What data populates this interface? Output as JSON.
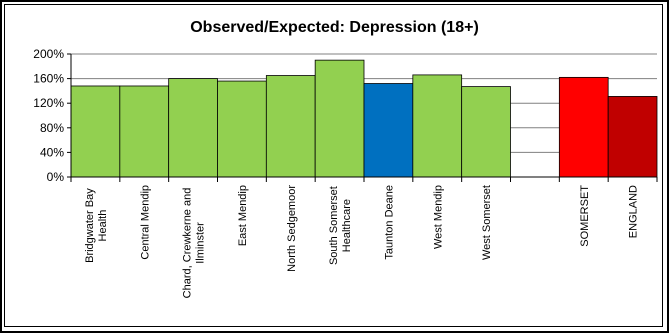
{
  "chart_data": {
    "type": "bar",
    "title": "Observed/Expected: Depression (18+)",
    "xlabel": "",
    "ylabel": "",
    "ylim": [
      0,
      200
    ],
    "yticks": [
      0,
      40,
      80,
      120,
      160,
      200
    ],
    "ytick_labels": [
      "0%",
      "40%",
      "80%",
      "120%",
      "160%",
      "200%"
    ],
    "grid": true,
    "legend": "none",
    "categories": [
      "Bridgwater Bay Health",
      "Central Mendip",
      "Chard, Crewkerne and Ilminster",
      "East Mendip",
      "North Sedgemoor",
      "South Somerset Healthcare",
      "Taunton Deane",
      "West Mendip",
      "West Somerset",
      "",
      "SOMERSET",
      "ENGLAND"
    ],
    "category_label_lines": [
      [
        "Bridgwater Bay",
        "Health"
      ],
      [
        "Central Mendip"
      ],
      [
        "Chard, Crewkerne and",
        "Ilminster"
      ],
      [
        "East Mendip"
      ],
      [
        "North Sedgemoor"
      ],
      [
        "South Somerset",
        "Healthcare"
      ],
      [
        "Taunton Deane"
      ],
      [
        "West Mendip"
      ],
      [
        "West Somerset"
      ],
      [],
      [
        "SOMERSET"
      ],
      [
        "ENGLAND"
      ]
    ],
    "values": [
      148,
      148,
      160,
      156,
      165,
      190,
      152,
      166,
      147,
      null,
      162,
      131
    ],
    "bar_colors": [
      "#92D050",
      "#92D050",
      "#92D050",
      "#92D050",
      "#92D050",
      "#92D050",
      "#0070C0",
      "#92D050",
      "#92D050",
      null,
      "#FF0000",
      "#C00000"
    ]
  }
}
